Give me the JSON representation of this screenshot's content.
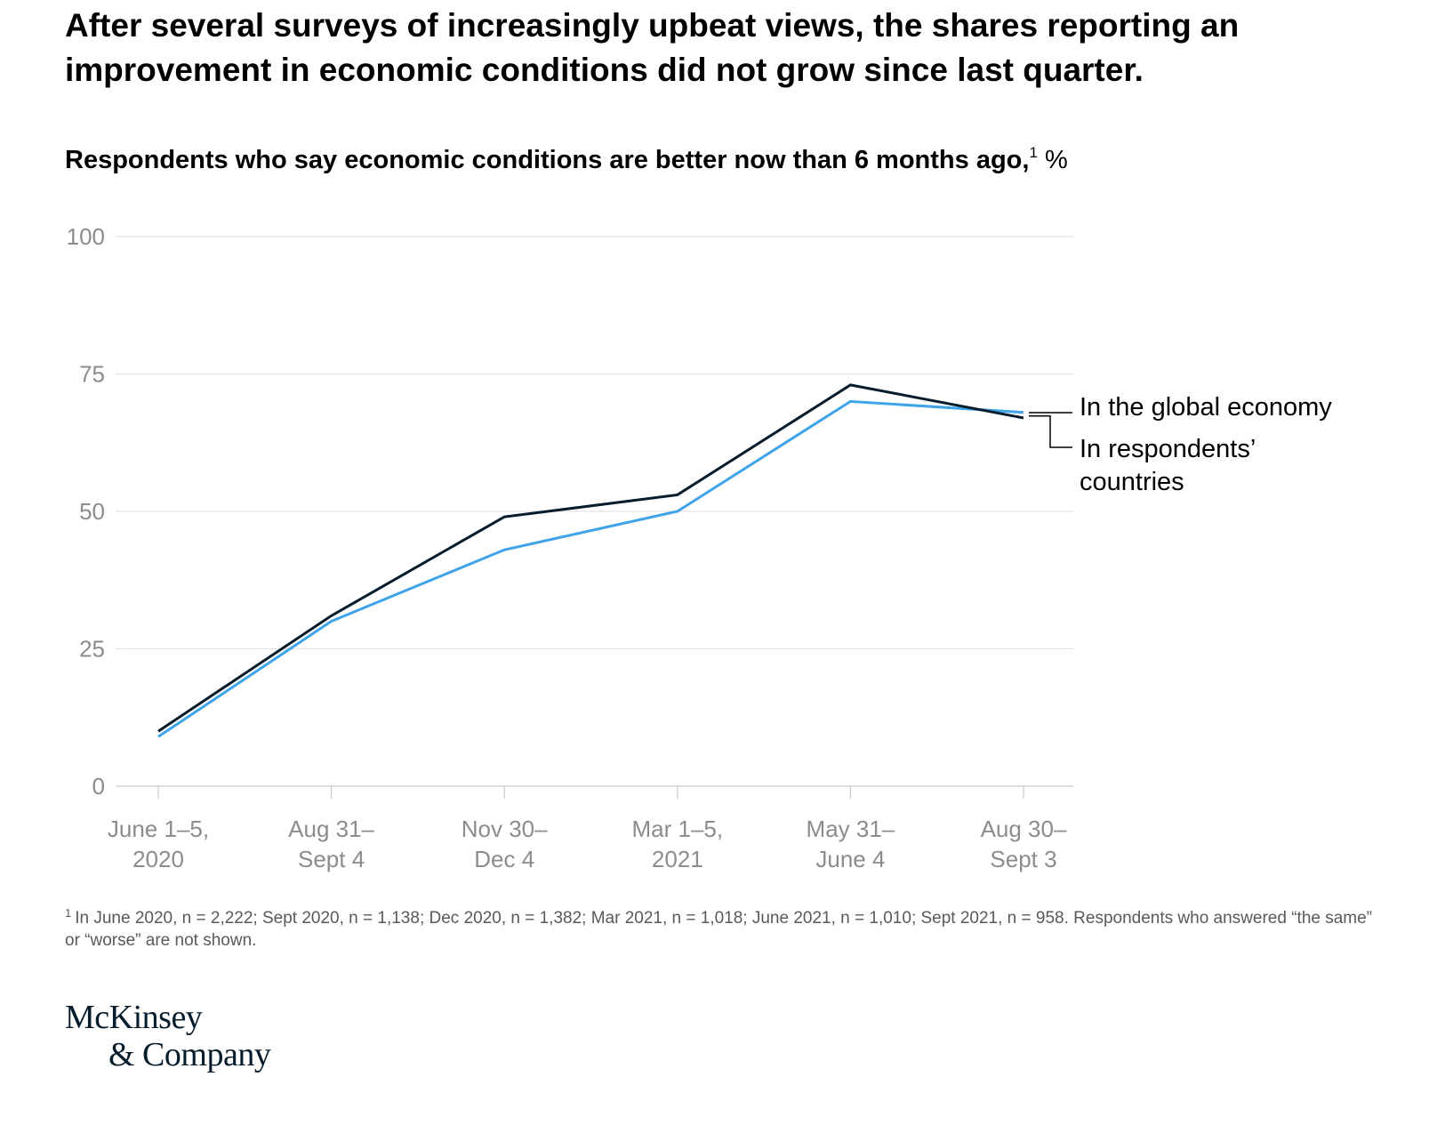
{
  "headline": "After several surveys of increasingly upbeat views, the shares reporting an improvement in economic conditions did not grow since last quarter.",
  "subtitle": {
    "text": "Respondents who say economic conditions are better now than 6 months ago,",
    "footnote_marker": "1",
    "unit": "%"
  },
  "chart_data": {
    "type": "line",
    "title": "Respondents who say economic conditions are better now than 6 months ago, %",
    "xlabel": "",
    "ylabel": "",
    "ylim": [
      0,
      100
    ],
    "yticks": [
      "0",
      "25",
      "50",
      "75",
      "100"
    ],
    "ytick_values": [
      0,
      25,
      50,
      75,
      100
    ],
    "grid": true,
    "legend_placement": "right, inline at line ends",
    "categories": [
      [
        "June 1–5,",
        "2020"
      ],
      [
        "Aug 31–",
        "Sept 4"
      ],
      [
        "Nov 30–",
        "Dec 4"
      ],
      [
        "Mar 1–5,",
        "2021"
      ],
      [
        "May 31–",
        "June 4"
      ],
      [
        "Aug 30–",
        "Sept 3"
      ]
    ],
    "series": [
      {
        "name": "In the global economy",
        "label_lines": [
          "In the global economy"
        ],
        "color": "#051c2c",
        "values": [
          10,
          31,
          49,
          53,
          73,
          67
        ]
      },
      {
        "name": "In respondents’ countries",
        "label_lines": [
          "In respondents’",
          "countries"
        ],
        "color": "#3fa3e8",
        "values": [
          9,
          30,
          43,
          50,
          70,
          68
        ]
      }
    ]
  },
  "footnote": {
    "marker": "1",
    "text": "In June 2020, n = 2,222; Sept 2020, n = 1,138; Dec 2020, n = 1,382; Mar 2021, n = 1,018; June 2021, n = 1,010; Sept 2021, n = 958. Respondents who answered “the same” or “worse” are not shown."
  },
  "logo": {
    "line1": "McKinsey",
    "line2": "& Company"
  },
  "colors": {
    "grid": "#e3e3e3",
    "axis": "#cccccc",
    "tick_text": "#8c8c8c"
  }
}
